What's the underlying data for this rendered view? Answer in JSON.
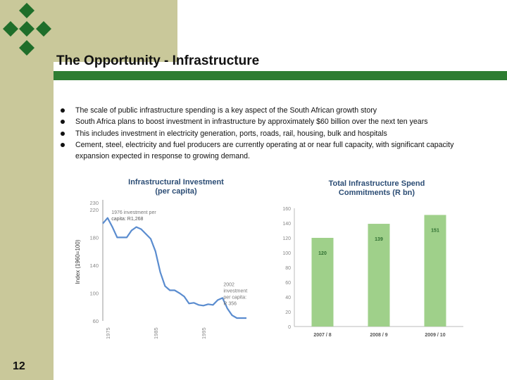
{
  "slide": {
    "title": "The Opportunity - Infrastructure",
    "page_number": "12",
    "bullets": [
      "The scale of public infrastructure spending is a key aspect of the South African growth story",
      "South Africa plans to boost investment in infrastructure by approximately $60 billion over the next ten years",
      "This includes investment in electricity generation, ports, roads, rail, housing, bulk and hospitals",
      "Cement, steel, electricity and fuel producers are currently operating at or near full capacity, with significant capacity expansion expected in response to growing demand."
    ]
  },
  "colors": {
    "title_rule": "#2e7d32",
    "tan": "#c9c89a",
    "diamond": "#1f6e2a",
    "chart_title": "#2c4d75",
    "line": "#5a8ccf",
    "bar": "#9fd08a",
    "bar_label": "#2e6e30"
  },
  "chart_data": [
    {
      "type": "line",
      "title_line1": "Infrastructural Investment",
      "title_line2": "(per capita)",
      "ylabel": "Index (1960=100)",
      "ylim": [
        60,
        230
      ],
      "yticks": [
        "230",
        "220",
        "180",
        "140",
        "100",
        "60"
      ],
      "xticks": [
        {
          "x": 1975,
          "label": "1975"
        },
        {
          "x": 1985,
          "label": "1985"
        },
        {
          "x": 1995,
          "label": "1995"
        }
      ],
      "xlim": [
        1974,
        2004
      ],
      "x": [
        1974,
        1975,
        1976,
        1977,
        1978,
        1979,
        1980,
        1981,
        1982,
        1983,
        1984,
        1985,
        1986,
        1987,
        1988,
        1989,
        1990,
        1991,
        1992,
        1993,
        1994,
        1995,
        1996,
        1997,
        1998,
        1999,
        2000,
        2001,
        2002,
        2003,
        2004
      ],
      "y": [
        200,
        208,
        195,
        180,
        180,
        180,
        190,
        195,
        192,
        185,
        178,
        160,
        130,
        110,
        104,
        104,
        100,
        95,
        85,
        86,
        83,
        82,
        84,
        83,
        90,
        93,
        78,
        68,
        64,
        64,
        64
      ],
      "annotations": [
        {
          "line1": "1976 investment per",
          "line2": "capita: R1,268"
        },
        {
          "line1": "2002",
          "line2": "investment",
          "line3": "per capita:",
          "line4": "R 356"
        }
      ]
    },
    {
      "type": "bar",
      "title_line1": "Total Infrastructure Spend",
      "title_line2": "Commitments (R bn)",
      "ylim": [
        0,
        160
      ],
      "yticks": [
        "0",
        "20",
        "40",
        "60",
        "80",
        "100",
        "120",
        "140",
        "160"
      ],
      "categories": [
        "2007 / 8",
        "2008 / 9",
        "2009 / 10"
      ],
      "values": [
        120,
        139,
        151
      ],
      "value_labels": [
        "120",
        "139",
        "151"
      ]
    }
  ]
}
